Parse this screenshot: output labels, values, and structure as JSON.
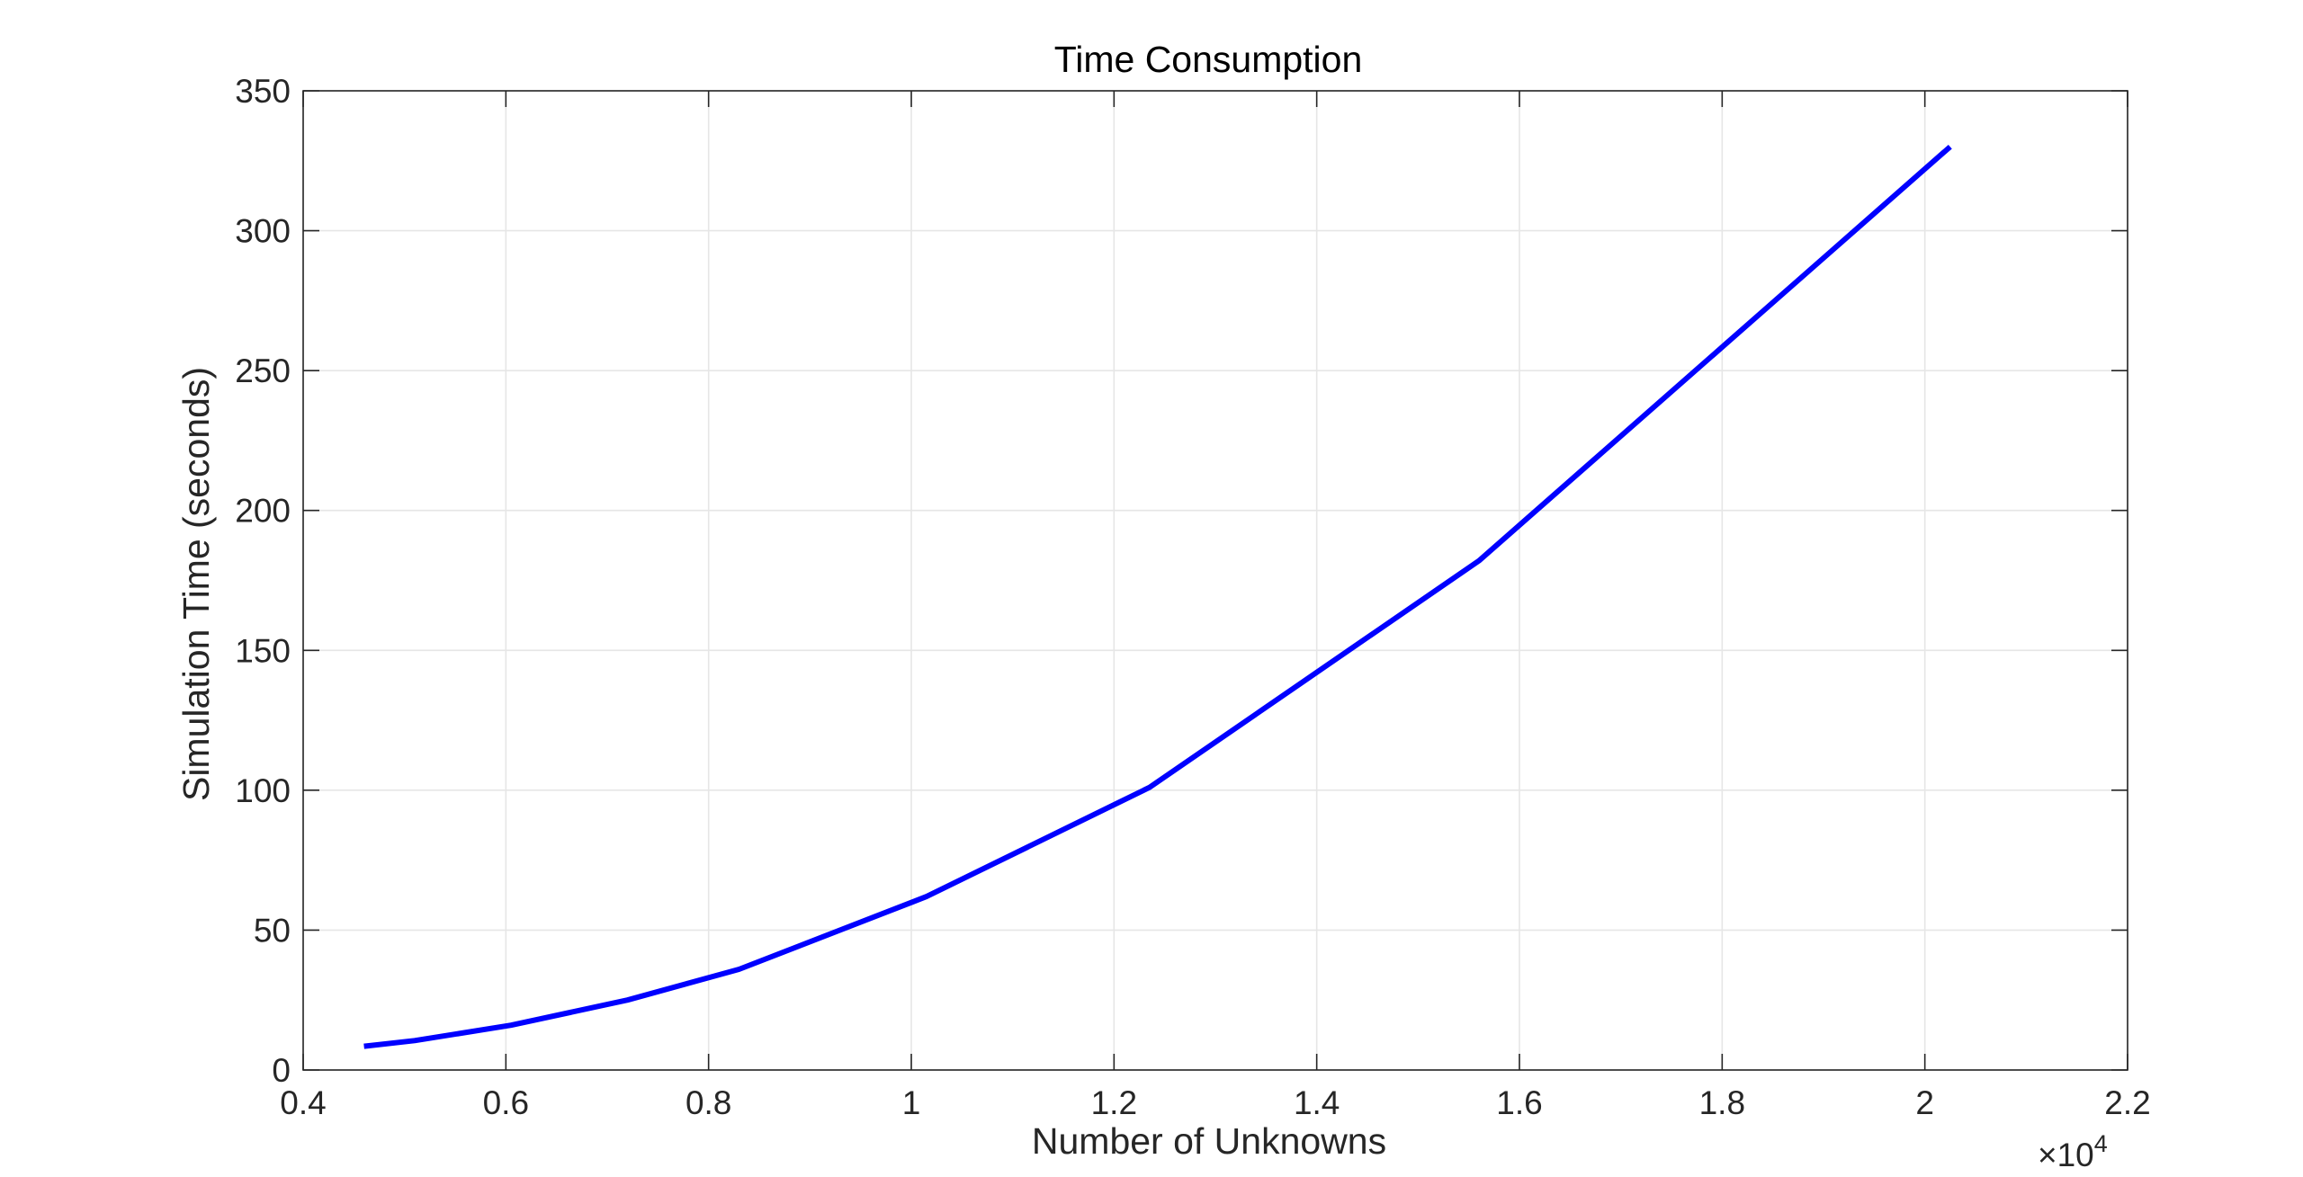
{
  "chart_data": {
    "type": "line",
    "title": "Time Consumption",
    "xlabel": "Number of Unknowns",
    "ylabel": "Simulation Time (seconds)",
    "x_multiplier": {
      "base": "×10",
      "exponent": "4"
    },
    "xlim": [
      0.4,
      2.2
    ],
    "ylim": [
      0,
      350
    ],
    "x_ticks": [
      0.4,
      0.6,
      0.8,
      1,
      1.2,
      1.4,
      1.6,
      1.8,
      2,
      2.2
    ],
    "x_tick_labels": [
      "0.4",
      "0.6",
      "0.8",
      "1",
      "1.2",
      "1.4",
      "1.6",
      "1.8",
      "2",
      "2.2"
    ],
    "y_ticks": [
      0,
      50,
      100,
      150,
      200,
      250,
      300,
      350
    ],
    "y_tick_labels": [
      "0",
      "50",
      "100",
      "150",
      "200",
      "250",
      "300",
      "350"
    ],
    "grid": true,
    "series": [
      {
        "color": "#0000ff",
        "x": [
          0.46,
          0.51,
          0.605,
          0.72,
          0.83,
          1.015,
          1.235,
          1.56,
          2.025
        ],
        "y": [
          8.5,
          10.5,
          16,
          25,
          36,
          62,
          101,
          182,
          330
        ]
      }
    ]
  }
}
